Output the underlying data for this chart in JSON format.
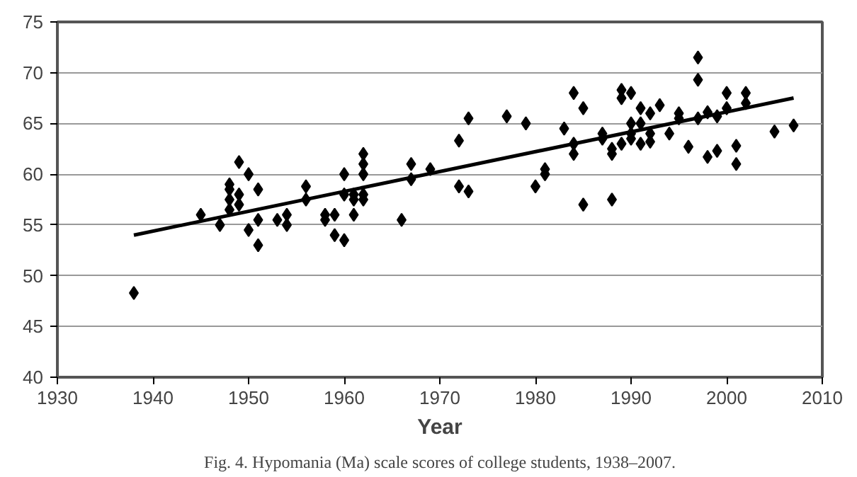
{
  "chart_data": {
    "type": "scatter",
    "xlabel": "Year",
    "xlim": [
      1930,
      2010
    ],
    "xticks": [
      1930,
      1940,
      1950,
      1960,
      1970,
      1980,
      1990,
      2000,
      2010
    ],
    "ylim": [
      40,
      75
    ],
    "yticks": [
      40,
      45,
      50,
      55,
      60,
      65,
      70,
      75
    ],
    "grid": "y",
    "marker": "diamond",
    "annotations": [
      "Fig. 4. Hypomania (Ma) scale scores of college students, 1938–2007."
    ],
    "series": [
      {
        "color": "#000000",
        "x": [
          1938,
          1945,
          1947,
          1948,
          1948,
          1948,
          1948,
          1949,
          1949,
          1949,
          1950,
          1950,
          1951,
          1951,
          1951,
          1953,
          1954,
          1954,
          1956,
          1956,
          1958,
          1958,
          1959,
          1959,
          1960,
          1960,
          1960,
          1961,
          1961,
          1961,
          1962,
          1962,
          1962,
          1962,
          1962,
          1966,
          1967,
          1967,
          1969,
          1972,
          1972,
          1973,
          1973,
          1977,
          1979,
          1980,
          1981,
          1981,
          1983,
          1984,
          1984,
          1984,
          1985,
          1985,
          1987,
          1987,
          1988,
          1988,
          1988,
          1989,
          1989,
          1989,
          1990,
          1990,
          1990,
          1990,
          1991,
          1991,
          1991,
          1992,
          1992,
          1992,
          1993,
          1994,
          1995,
          1995,
          1996,
          1997,
          1997,
          1997,
          1998,
          1998,
          1999,
          1999,
          2000,
          2000,
          2001,
          2001,
          2002,
          2002,
          2005,
          2007
        ],
        "values": [
          48.3,
          56,
          55,
          56.5,
          59,
          58.5,
          57.5,
          61.2,
          57,
          58,
          60,
          54.5,
          58.5,
          55.5,
          53,
          55.5,
          56,
          55,
          57.5,
          58.8,
          56,
          55.5,
          54,
          56,
          60,
          58,
          53.5,
          57.5,
          56,
          58,
          62,
          61,
          60,
          58,
          57.5,
          55.5,
          59.5,
          61,
          60.5,
          63.3,
          58.8,
          65.5,
          58.3,
          65.7,
          65,
          58.8,
          60,
          60.5,
          64.5,
          63,
          62,
          68,
          66.5,
          57,
          63.5,
          64,
          62,
          62.5,
          57.5,
          68.3,
          67.5,
          63,
          63.5,
          65,
          68,
          64,
          66.5,
          65,
          63,
          64,
          66,
          63.2,
          66.8,
          64,
          66,
          65.5,
          62.7,
          71.5,
          69.3,
          65.5,
          66.1,
          61.7,
          65.7,
          62.3,
          68,
          66.5,
          61,
          62.8,
          68,
          67,
          64.2,
          64.8
        ]
      },
      {
        "type": "line",
        "color": "#000000",
        "x": [
          1938,
          2007
        ],
        "values": [
          54,
          67.5
        ],
        "marker": "none",
        "line_style": "solid"
      }
    ]
  }
}
